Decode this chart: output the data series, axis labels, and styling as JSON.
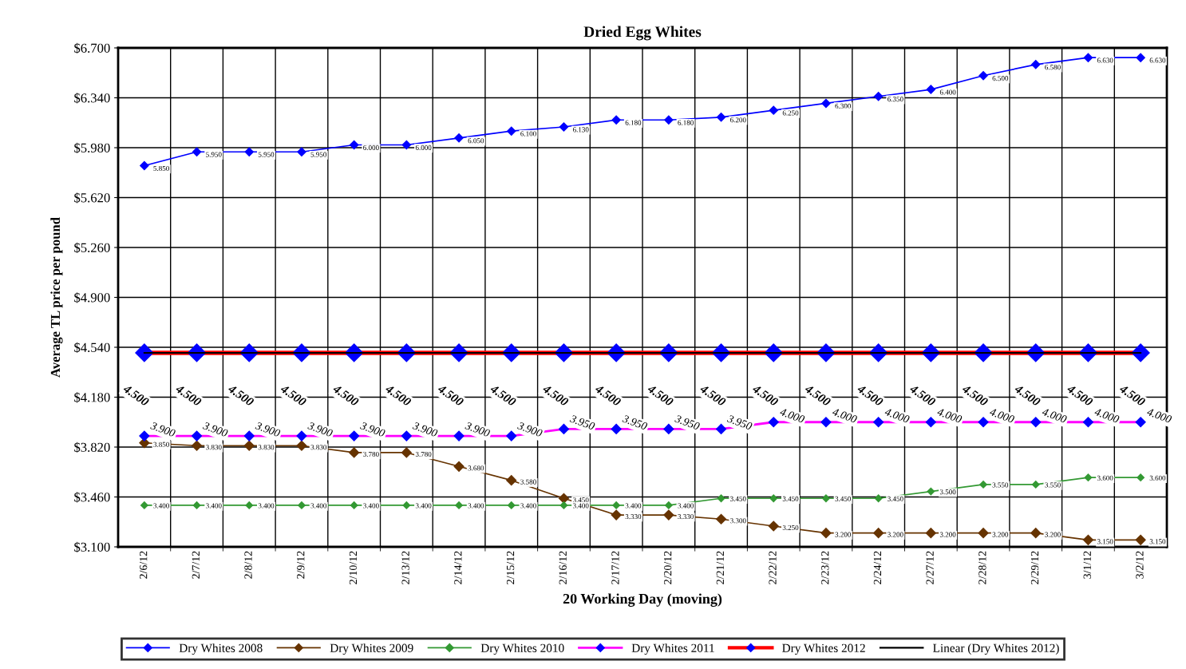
{
  "chart_data": {
    "type": "line",
    "title": "Dried Egg Whites",
    "xlabel": "20 Working Day (moving)",
    "ylabel": "Average TL price per pound",
    "categories": [
      "2/6/12",
      "2/7/12",
      "2/8/12",
      "2/9/12",
      "2/10/12",
      "2/13/12",
      "2/14/12",
      "2/15/12",
      "2/16/12",
      "2/17/12",
      "2/20/12",
      "2/21/12",
      "2/22/12",
      "2/23/12",
      "2/24/12",
      "2/27/12",
      "2/28/12",
      "2/29/12",
      "3/1/12",
      "3/2/12"
    ],
    "ylim": [
      3.1,
      6.7
    ],
    "yticks": [
      {
        "value": 3.1,
        "label": "$3.100"
      },
      {
        "value": 3.46,
        "label": "$3.460"
      },
      {
        "value": 3.82,
        "label": "$3.820"
      },
      {
        "value": 4.18,
        "label": "$4.180"
      },
      {
        "value": 4.54,
        "label": "$4.540"
      },
      {
        "value": 4.9,
        "label": "$4.900"
      },
      {
        "value": 5.26,
        "label": "$5.260"
      },
      {
        "value": 5.62,
        "label": "$5.620"
      },
      {
        "value": 5.98,
        "label": "$5.980"
      },
      {
        "value": 6.34,
        "label": "$6.340"
      },
      {
        "value": 6.7,
        "label": "$6.700"
      }
    ],
    "grid": true,
    "legend": "bottom",
    "marker": "diamond",
    "line_style": "solid",
    "series": [
      {
        "name": "Dry Whites 2008",
        "color": "#0000ff",
        "values": [
          5.85,
          5.95,
          5.95,
          5.95,
          6.0,
          6.0,
          6.05,
          6.1,
          6.13,
          6.18,
          6.18,
          6.2,
          6.25,
          6.3,
          6.35,
          6.4,
          6.5,
          6.58,
          6.63,
          6.63
        ],
        "value_labels": [
          "5.850",
          "5.950",
          "5.950",
          "5.950",
          "6.000",
          "6.000",
          "6.050",
          "6.100",
          "6.130",
          "6.180",
          "6.180",
          "6.200",
          "6.250",
          "6.300",
          "6.350",
          "6.400",
          "6.500",
          "6.580",
          "6.630",
          "6.630"
        ]
      },
      {
        "name": "Dry Whites 2009",
        "color": "#663300",
        "values": [
          3.85,
          3.83,
          3.83,
          3.83,
          3.78,
          3.78,
          3.68,
          3.58,
          3.45,
          3.33,
          3.33,
          3.3,
          3.25,
          3.2,
          3.2,
          3.2,
          3.2,
          3.2,
          3.15,
          3.15
        ],
        "value_labels": [
          "3.850",
          "3.830",
          "3.830",
          "3.830",
          "3.780",
          "3.780",
          "3.680",
          "3.580",
          "3.450",
          "3.330",
          "3.330",
          "3.300",
          "3.250",
          "3.200",
          "3.200",
          "3.200",
          "3.200",
          "3.200",
          "3.150",
          "3.150"
        ]
      },
      {
        "name": "Dry Whites 2010",
        "color": "#339933",
        "values": [
          3.4,
          3.4,
          3.4,
          3.4,
          3.4,
          3.4,
          3.4,
          3.4,
          3.4,
          3.4,
          3.4,
          3.45,
          3.45,
          3.45,
          3.45,
          3.5,
          3.55,
          3.55,
          3.6,
          3.6
        ],
        "value_labels": [
          "3.400",
          "3.400",
          "3.400",
          "3.400",
          "3.400",
          "3.400",
          "3.400",
          "3.400",
          "3.400",
          "3.400",
          "3.400",
          "3.450",
          "3.450",
          "3.450",
          "3.450",
          "3.500",
          "3.550",
          "3.550",
          "3.600",
          "3.600"
        ]
      },
      {
        "name": "Dry Whites 2011",
        "color": "#ff00ff",
        "colors": [
          "#0000ff",
          "#0000ff",
          "#0000ff",
          "#0000ff",
          "#0000ff",
          "#0000ff",
          "#0000ff",
          "#0000ff",
          "#0000ff",
          "#0000ff",
          "#0000ff",
          "#0000ff",
          "#0000ff",
          "#0000ff",
          "#0000ff",
          "#0000ff",
          "#0000ff",
          "#0000ff",
          "#0000ff",
          "#0000ff"
        ],
        "values": [
          3.9,
          3.9,
          3.9,
          3.9,
          3.9,
          3.9,
          3.9,
          3.9,
          3.95,
          3.95,
          3.95,
          3.95,
          4.0,
          4.0,
          4.0,
          4.0,
          4.0,
          4.0,
          4.0,
          4.0
        ],
        "value_labels": [
          "3.900",
          "3.900",
          "3.900",
          "3.900",
          "3.900",
          "3.900",
          "3.900",
          "3.900",
          "3.950",
          "3.950",
          "3.950",
          "3.950",
          "4.000",
          "4.000",
          "4.000",
          "4.000",
          "4.000",
          "4.000",
          "4.000",
          "4.000"
        ]
      },
      {
        "name": "Dry Whites 2012",
        "color": "#ff0000",
        "colors": [
          "#0000ff",
          "#0000ff",
          "#0000ff",
          "#0000ff",
          "#0000ff",
          "#0000ff",
          "#0000ff",
          "#0000ff",
          "#0000ff",
          "#0000ff",
          "#0000ff",
          "#0000ff",
          "#0000ff",
          "#0000ff",
          "#0000ff",
          "#0000ff",
          "#0000ff",
          "#0000ff",
          "#0000ff",
          "#0000ff"
        ],
        "values": [
          4.5,
          4.5,
          4.5,
          4.5,
          4.5,
          4.5,
          4.5,
          4.5,
          4.5,
          4.5,
          4.5,
          4.5,
          4.5,
          4.5,
          4.5,
          4.5,
          4.5,
          4.5,
          4.5,
          4.5
        ],
        "value_labels": [
          "4.500",
          "4.500",
          "4.500",
          "4.500",
          "4.500",
          "4.500",
          "4.500",
          "4.500",
          "4.500",
          "4.500",
          "4.500",
          "4.500",
          "4.500",
          "4.500",
          "4.500",
          "4.500",
          "4.500",
          "4.500",
          "4.500",
          "4.500"
        ]
      },
      {
        "name": "Linear (Dry Whites 2012)",
        "color": "#000000",
        "marker": "none",
        "values": [
          4.5,
          4.5,
          4.5,
          4.5,
          4.5,
          4.5,
          4.5,
          4.5,
          4.5,
          4.5,
          4.5,
          4.5,
          4.5,
          4.5,
          4.5,
          4.5,
          4.5,
          4.5,
          4.5,
          4.5
        ]
      }
    ]
  }
}
